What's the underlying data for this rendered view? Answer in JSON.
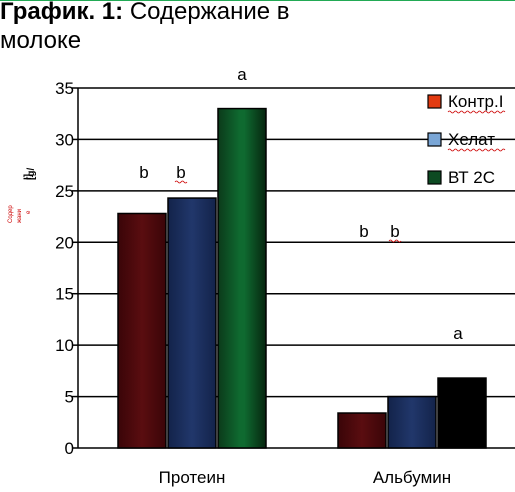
{
  "title": {
    "prefix": "График",
    "number": ". 1:",
    "text_part1": "Содержание в",
    "text_part2": "молоке"
  },
  "chart_data": {
    "type": "bar",
    "categories": [
      "Протеин",
      "Альбумин"
    ],
    "series": [
      {
        "name": "Контр.I",
        "values": [
          22.8,
          3.4
        ],
        "color": "#4d0a0d",
        "legend_color": "#e23a10"
      },
      {
        "name": "Хелат",
        "values": [
          24.3,
          5.0
        ],
        "color": "#1b2d5a",
        "legend_color": "#7aa6d6"
      },
      {
        "name": "ВТ 2С",
        "values": [
          33.0,
          6.8
        ],
        "color": "#0d4a22",
        "legend_color": "#0d4a22"
      }
    ],
    "ylim": [
      0,
      35
    ],
    "yticks": [
      0,
      5,
      10,
      15,
      20,
      25,
      30,
      35
    ],
    "ylabel_fragments": [
      "Содер",
      "жани",
      "е",
      "[g/",
      "l]"
    ],
    "annotations": [
      {
        "text": "a",
        "category": 0,
        "series": 2
      },
      {
        "text": "b",
        "category": 0,
        "series": 0
      },
      {
        "text": "b",
        "category": 0,
        "series": 1
      },
      {
        "text": "b",
        "category": 1,
        "series": 0
      },
      {
        "text": "b",
        "category": 1,
        "series": 1
      },
      {
        "text": "a",
        "category": 1,
        "series": 2
      }
    ],
    "grid": true,
    "legend": "right"
  }
}
